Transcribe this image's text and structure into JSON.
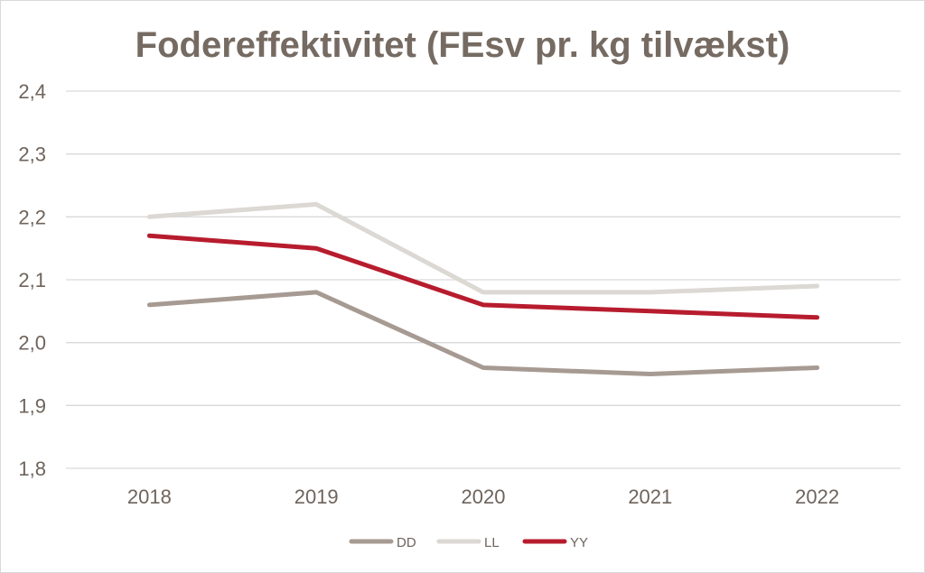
{
  "chart_data": {
    "type": "line",
    "title": "Fodereffektivitet (FEsv pr. kg tilvækst)",
    "categories": [
      "2018",
      "2019",
      "2020",
      "2021",
      "2022"
    ],
    "ylim": [
      1.8,
      2.4
    ],
    "yticks": [
      "1,8",
      "1,9",
      "2,0",
      "2,1",
      "2,2",
      "2,3",
      "2,4"
    ],
    "grid": true,
    "legend_position": "bottom",
    "series": [
      {
        "name": "DD",
        "color": "#a69a92",
        "values": [
          2.06,
          2.08,
          1.96,
          1.95,
          1.96
        ]
      },
      {
        "name": "LL",
        "color": "#dcd8d3",
        "values": [
          2.2,
          2.22,
          2.08,
          2.08,
          2.09
        ]
      },
      {
        "name": "YY",
        "color": "#b71c2e",
        "values": [
          2.17,
          2.15,
          2.06,
          2.05,
          2.04
        ]
      }
    ]
  }
}
